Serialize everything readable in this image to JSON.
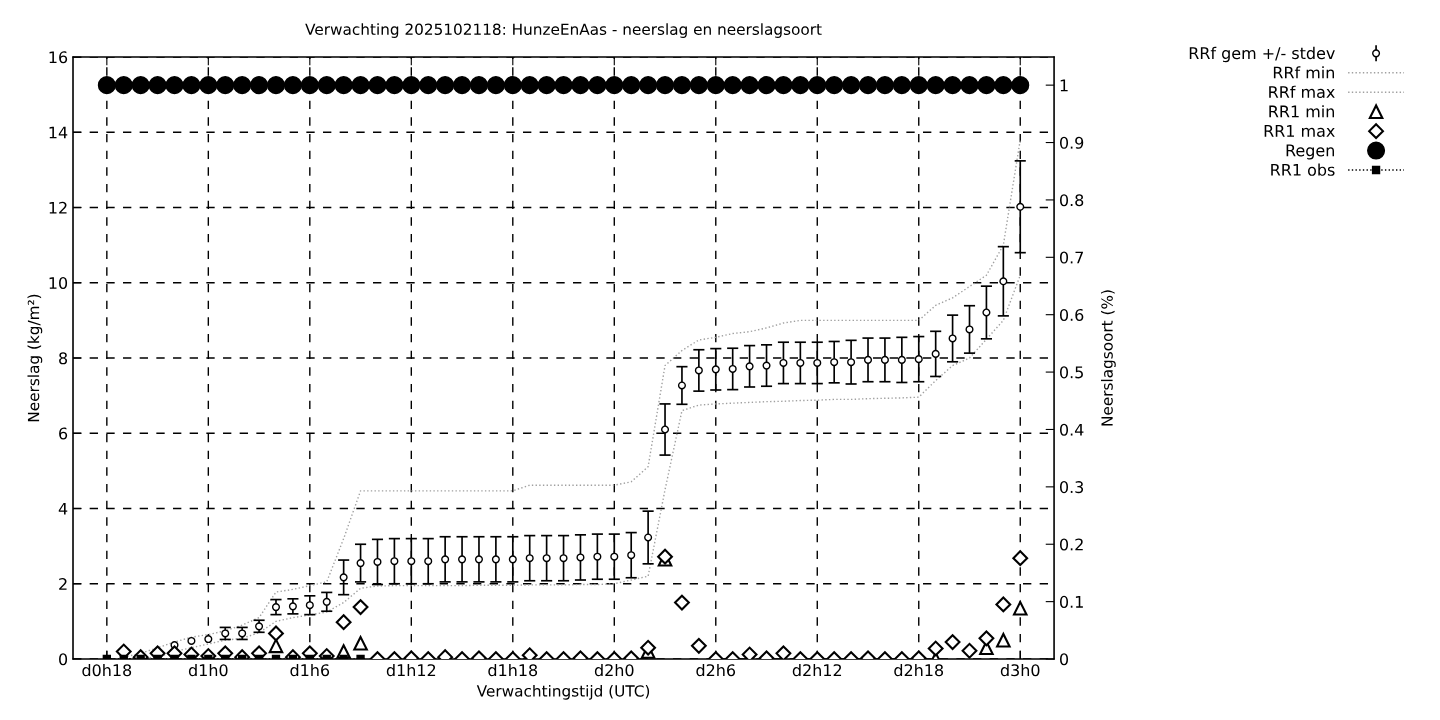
{
  "chart_data": {
    "type": "scatter",
    "title": "Verwachting 2025102118: HunzeEnAas - neerslag en neerslagsoort",
    "xlabel": "Verwachtingstijd (UTC)",
    "ylabel": "Neerslag (kg/m²)",
    "y2label": "Neerslagsoort (%)",
    "categories": [
      "d0h18",
      null,
      null,
      null,
      null,
      null,
      "d1h0",
      null,
      null,
      null,
      null,
      null,
      "d1h6",
      null,
      null,
      null,
      null,
      null,
      "d1h12",
      null,
      null,
      null,
      null,
      null,
      "d1h18",
      null,
      null,
      null,
      null,
      null,
      "d2h0",
      null,
      null,
      null,
      null,
      null,
      "d2h6",
      null,
      null,
      null,
      null,
      null,
      "d2h12",
      null,
      null,
      null,
      null,
      null,
      "d2h18",
      null,
      null,
      null,
      null,
      null,
      "d3h0"
    ],
    "ylim": [
      0,
      16
    ],
    "yticks": [
      0,
      2,
      4,
      6,
      8,
      10,
      12,
      14,
      16
    ],
    "y2lim": [
      0,
      1.049
    ],
    "y2ticks": [
      0,
      0.1,
      0.2,
      0.3,
      0.4,
      0.5,
      0.6,
      0.7,
      0.8,
      0.9,
      1
    ],
    "grid": true,
    "legend": "top right",
    "series": [
      {
        "name": "RRf gem +/- stdev",
        "marker": "circle",
        "color": "#000000",
        "values": [
          null,
          null,
          null,
          null,
          0.37,
          0.48,
          0.53,
          0.68,
          0.68,
          0.87,
          1.38,
          1.4,
          1.43,
          1.52,
          2.17,
          2.55,
          2.58,
          2.6,
          2.6,
          2.6,
          2.65,
          2.65,
          2.65,
          2.65,
          2.65,
          2.68,
          2.68,
          2.68,
          2.7,
          2.72,
          2.72,
          2.76,
          3.23,
          6.1,
          7.27,
          7.67,
          7.7,
          7.71,
          7.78,
          7.8,
          7.87,
          7.87,
          7.87,
          7.89,
          7.89,
          7.95,
          7.95,
          7.95,
          7.97,
          8.11,
          8.52,
          8.76,
          9.21,
          10.04,
          12.02
        ],
        "errors": [
          null,
          null,
          null,
          null,
          null,
          null,
          null,
          0.16,
          0.16,
          0.16,
          0.2,
          0.2,
          0.25,
          0.25,
          0.46,
          0.5,
          0.6,
          0.6,
          0.6,
          0.6,
          0.6,
          0.6,
          0.6,
          0.6,
          0.6,
          0.6,
          0.6,
          0.6,
          0.6,
          0.6,
          0.6,
          0.6,
          0.7,
          0.68,
          0.5,
          0.55,
          0.55,
          0.55,
          0.55,
          0.55,
          0.55,
          0.55,
          0.55,
          0.55,
          0.58,
          0.58,
          0.58,
          0.6,
          0.6,
          0.6,
          0.62,
          0.63,
          0.7,
          0.92,
          1.22
        ]
      },
      {
        "name": "RRf min",
        "type": "line",
        "line_style": "dotted",
        "color": "#a0a0a0",
        "values": [
          null,
          0,
          0.02,
          0.05,
          0.2,
          0.3,
          0.4,
          0.5,
          0.55,
          0.7,
          1.0,
          1.1,
          1.17,
          1.25,
          1.5,
          1.88,
          1.94,
          1.95,
          1.95,
          1.95,
          1.95,
          1.95,
          1.96,
          1.96,
          1.96,
          1.97,
          1.97,
          1.97,
          1.98,
          1.98,
          2.0,
          2.1,
          2.2,
          4.5,
          6.6,
          6.75,
          6.78,
          6.8,
          6.82,
          6.84,
          6.85,
          6.87,
          6.88,
          6.9,
          6.9,
          6.92,
          6.93,
          6.94,
          6.96,
          7.4,
          7.8,
          8.0,
          8.5,
          9.0,
          10.2
        ]
      },
      {
        "name": "RRf max",
        "type": "line",
        "line_style": "dotted",
        "color": "#a0a0a0",
        "values": [
          null,
          0.05,
          0.15,
          0.3,
          0.45,
          0.58,
          0.65,
          0.75,
          0.9,
          1.1,
          1.78,
          1.85,
          1.95,
          2.05,
          3.2,
          4.47,
          4.47,
          4.47,
          4.47,
          4.47,
          4.47,
          4.47,
          4.47,
          4.47,
          4.47,
          4.62,
          4.62,
          4.62,
          4.62,
          4.62,
          4.62,
          4.71,
          5.11,
          7.8,
          8.2,
          8.48,
          8.55,
          8.65,
          8.7,
          8.8,
          8.93,
          9.0,
          9.0,
          9.0,
          9.0,
          9.0,
          9.0,
          9.0,
          9.0,
          9.4,
          9.6,
          9.9,
          10.2,
          11.0,
          13.8
        ]
      },
      {
        "name": "RR1 min",
        "marker": "triangle",
        "color": "#000000",
        "values": [
          null,
          null,
          null,
          null,
          null,
          null,
          null,
          null,
          null,
          null,
          0.35,
          null,
          null,
          null,
          0.2,
          0.42,
          null,
          null,
          null,
          null,
          null,
          null,
          null,
          null,
          null,
          null,
          null,
          null,
          null,
          null,
          null,
          null,
          0.2,
          2.65,
          null,
          null,
          null,
          null,
          null,
          null,
          null,
          null,
          null,
          null,
          null,
          null,
          null,
          null,
          null,
          0,
          null,
          null,
          0.3,
          0.5,
          1.35
        ]
      },
      {
        "name": "RR1 max",
        "marker": "diamond",
        "color": "#000000",
        "values": [
          null,
          0.2,
          0.05,
          0.15,
          0.15,
          0.12,
          0.08,
          0.15,
          0.05,
          0.15,
          0.68,
          0.05,
          0.15,
          0.08,
          0.98,
          1.38,
          0,
          0,
          0.02,
          0,
          0.05,
          0,
          0.02,
          0,
          0,
          0.1,
          0,
          0,
          0.02,
          0,
          0,
          0.02,
          0.3,
          2.72,
          1.5,
          0.35,
          0,
          0,
          0.12,
          0.02,
          0.15,
          0,
          0,
          0,
          0,
          0.02,
          0,
          0,
          0.02,
          0.28,
          0.45,
          0.22,
          0.55,
          1.45,
          2.68
        ]
      },
      {
        "name": "Regen",
        "marker": "circle",
        "color": "#000000",
        "axis": "y2",
        "values": [
          1,
          1,
          1,
          1,
          1,
          1,
          1,
          1,
          1,
          1,
          1,
          1,
          1,
          1,
          1,
          1,
          1,
          1,
          1,
          1,
          1,
          1,
          1,
          1,
          1,
          1,
          1,
          1,
          1,
          1,
          1,
          1,
          1,
          1,
          1,
          1,
          1,
          1,
          1,
          1,
          1,
          1,
          1,
          1,
          1,
          1,
          1,
          1,
          1,
          1,
          1,
          1,
          1,
          1,
          1
        ]
      },
      {
        "name": "RR1 obs",
        "type": "line",
        "marker": "square",
        "line_style": "dotted",
        "color": "#000000",
        "values": [
          0,
          0,
          0,
          0,
          0,
          0,
          0,
          0,
          0,
          0,
          0,
          0,
          0,
          0,
          0,
          0,
          null,
          null,
          null,
          null,
          null,
          null,
          null,
          null,
          null,
          null,
          null,
          null,
          null,
          null,
          null,
          null,
          null,
          null,
          null,
          null,
          null,
          null,
          null,
          null,
          null,
          null,
          null,
          null,
          null,
          null,
          null,
          null,
          null,
          null,
          null,
          null,
          null,
          null,
          null
        ]
      }
    ]
  }
}
